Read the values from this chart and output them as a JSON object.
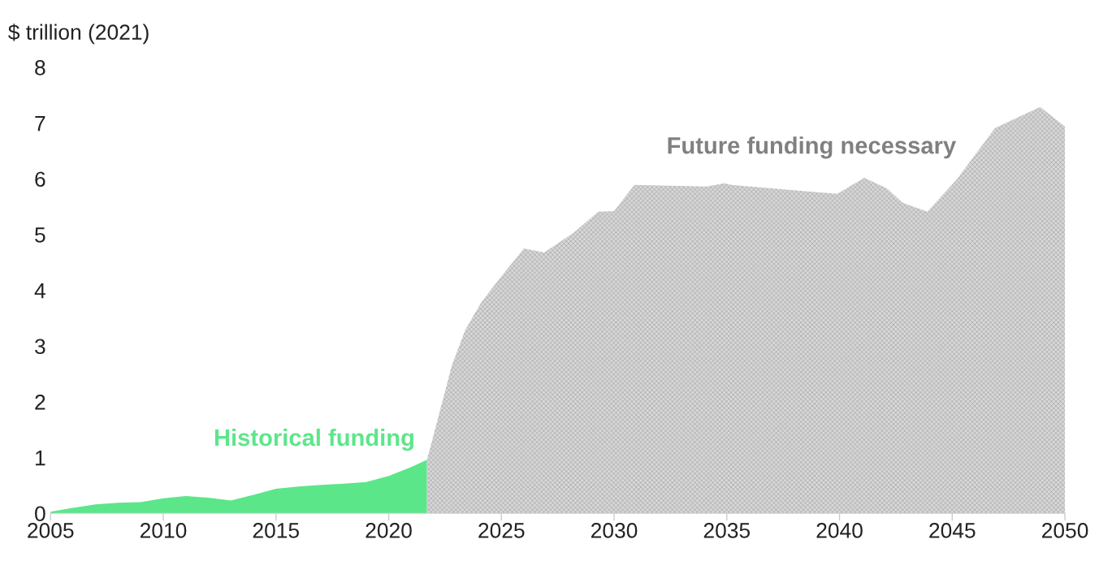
{
  "chart_data": {
    "type": "area",
    "ylabel": "$ trillion (2021)",
    "series": [
      {
        "name": "Historical funding",
        "color": "#5ce68a",
        "x": [
          2005,
          2006,
          2007,
          2008,
          2009,
          2010,
          2011,
          2012,
          2013,
          2014,
          2015,
          2016,
          2017,
          2018,
          2019,
          2020,
          2021,
          2021.7
        ],
        "values": [
          0.03,
          0.1,
          0.16,
          0.19,
          0.2,
          0.27,
          0.31,
          0.28,
          0.23,
          0.33,
          0.44,
          0.48,
          0.51,
          0.53,
          0.56,
          0.67,
          0.83,
          0.96
        ]
      },
      {
        "name": "Future funding necessary",
        "color": "#d9d9d9",
        "x": [
          2021.7,
          2022.1,
          2022.8,
          2023.4,
          2024.1,
          2024.8,
          2026.0,
          2026.9,
          2028.2,
          2029.3,
          2030.0,
          2030.9,
          2034.1,
          2034.9,
          2035.2,
          2039.9,
          2041.1,
          2042.1,
          2042.8,
          2043.9,
          2045.2,
          2046.9,
          2048.9,
          2050
        ],
        "values": [
          0.96,
          1.57,
          2.65,
          3.29,
          3.78,
          4.15,
          4.75,
          4.68,
          5.03,
          5.41,
          5.42,
          5.89,
          5.86,
          5.92,
          5.89,
          5.73,
          6.02,
          5.83,
          5.57,
          5.41,
          5.99,
          6.91,
          7.29,
          6.94
        ]
      }
    ],
    "xlim": [
      2005,
      2050
    ],
    "xticks": [
      2005,
      2010,
      2015,
      2020,
      2025,
      2030,
      2035,
      2040,
      2045,
      2050
    ],
    "ylim": [
      0,
      8
    ],
    "yticks": [
      0,
      1,
      2,
      3,
      4,
      5,
      6,
      7,
      8
    ],
    "grid": false,
    "legend": false
  }
}
